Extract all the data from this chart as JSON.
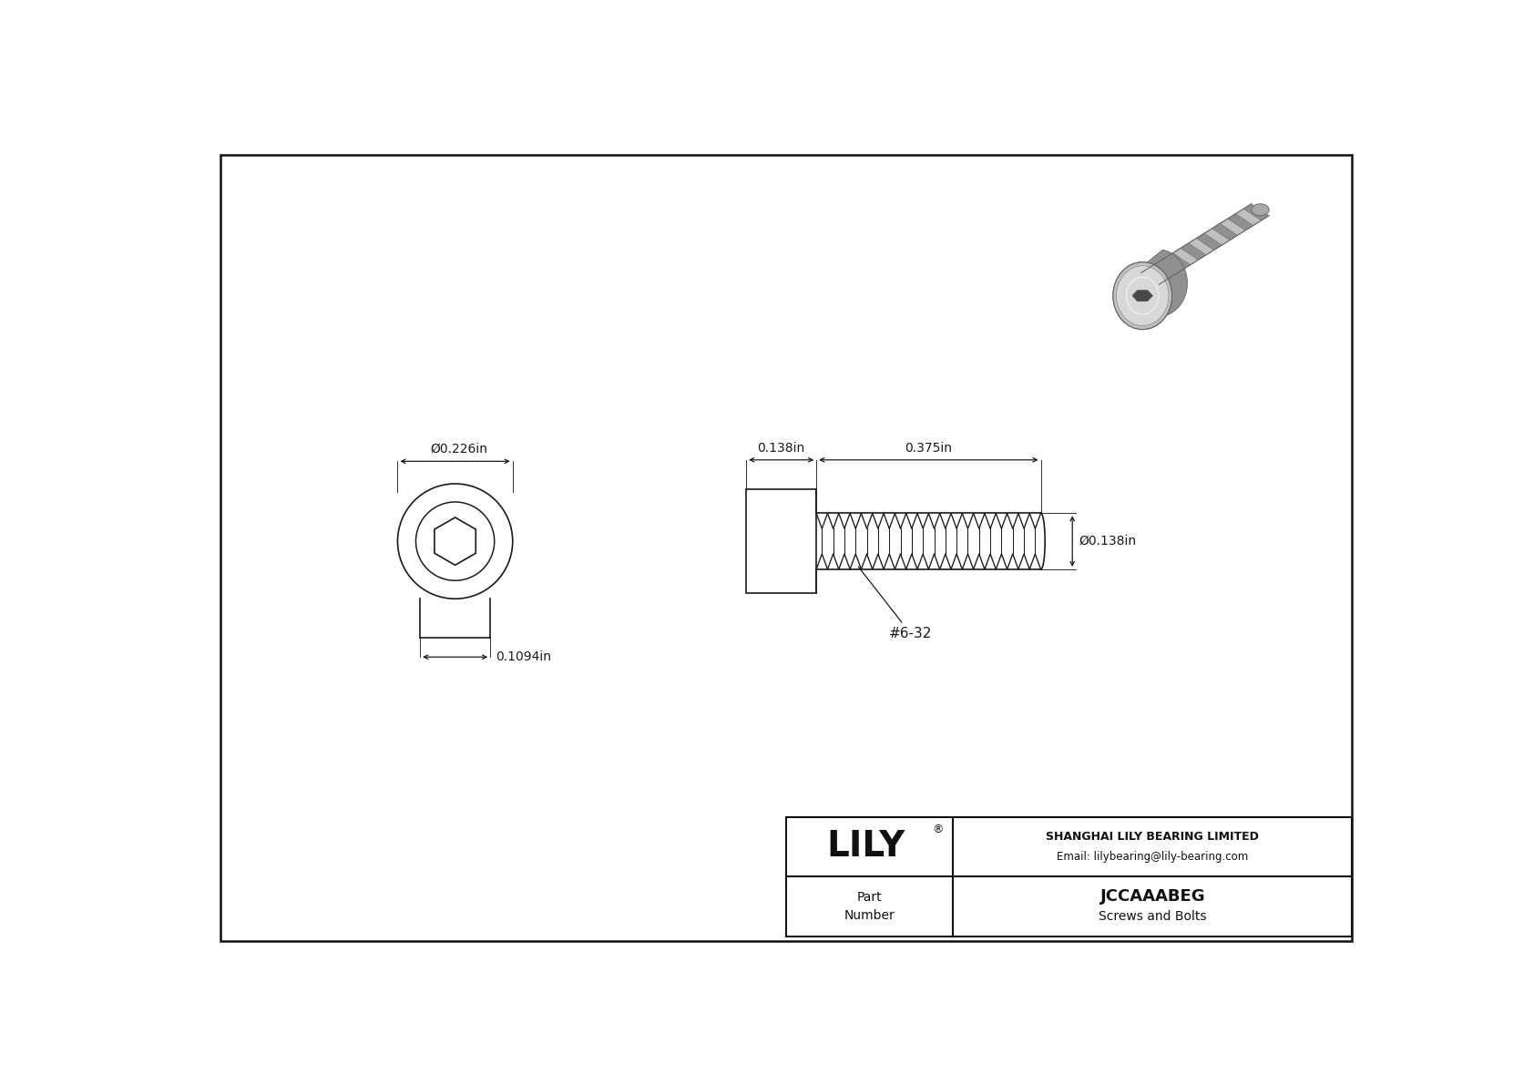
{
  "bg_color": "#ffffff",
  "line_color": "#1a1a1a",
  "dim_color": "#1a1a1a",
  "border_color": "#111111",
  "title_company": "SHANGHAI LILY BEARING LIMITED",
  "title_email": "Email: lilybearing@lily-bearing.com",
  "part_label": "Part\nNumber",
  "part_number": "JCCAAABEG",
  "part_category": "Screws and Bolts",
  "dim_head_diameter": "Ø0.226in",
  "dim_head_height": "0.1094in",
  "dim_shank_length": "0.138in",
  "dim_thread_length": "0.375in",
  "dim_thread_diameter": "Ø0.138in",
  "thread_label": "#6-32",
  "gray_light": "#d4d4d4",
  "gray_mid": "#aaaaaa",
  "gray_dark": "#888888",
  "gray_darker": "#606060",
  "gray_shadow": "#404040"
}
